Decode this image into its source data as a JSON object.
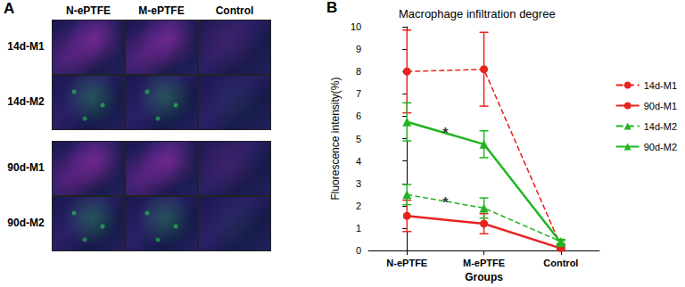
{
  "panel_a": {
    "label": "A",
    "columns": [
      "N-ePTFE",
      "M-ePTFE",
      "Control"
    ],
    "rows": [
      "14d-M1",
      "14d-M2",
      "90d-M1",
      "90d-M2"
    ]
  },
  "panel_b": {
    "label": "B"
  },
  "chart_data": {
    "type": "line",
    "title": "Macrophage infiltration degree",
    "x_label": "Groups",
    "y_label": "Fluorescence intensity(%)",
    "categories": [
      "N-ePTFE",
      "M-ePTFE",
      "Control"
    ],
    "ylim": [
      0,
      10
    ],
    "yticks": [
      0,
      1,
      2,
      3,
      4,
      5,
      6,
      7,
      8,
      9,
      10
    ],
    "grid": false,
    "legend": "right",
    "series": [
      {
        "name": "14d-M1",
        "color": "#e8231e",
        "marker": "circle",
        "line_style": "dashed",
        "values": [
          8.0,
          8.1,
          0.2
        ],
        "errors": [
          1.85,
          1.65,
          0.1
        ]
      },
      {
        "name": "90d-M1",
        "color": "#e8231e",
        "marker": "circle",
        "line_style": "solid",
        "values": [
          1.55,
          1.2,
          0.1
        ],
        "errors": [
          0.7,
          0.45,
          0.05
        ]
      },
      {
        "name": "14d-M2",
        "color": "#22b422",
        "marker": "triangle",
        "line_style": "dashed",
        "values": [
          2.5,
          1.9,
          0.4
        ],
        "errors": [
          0.45,
          0.45,
          0.1
        ]
      },
      {
        "name": "90d-M2",
        "color": "#22b422",
        "marker": "triangle",
        "line_style": "solid",
        "values": [
          5.75,
          4.75,
          0.35
        ],
        "errors": [
          0.85,
          0.6,
          0.1
        ]
      }
    ],
    "annotations": [
      {
        "text": "*",
        "x": 0.5,
        "y": 5.25
      },
      {
        "text": "*",
        "x": 0.5,
        "y": 2.15
      }
    ]
  }
}
